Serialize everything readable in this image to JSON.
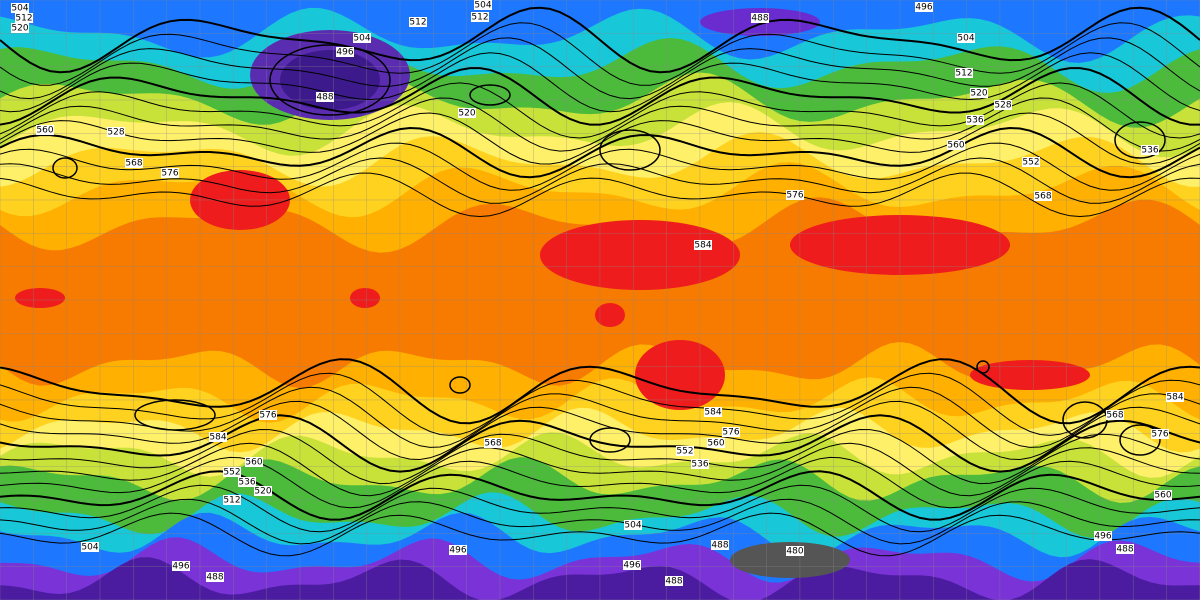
{
  "contour_labels": [
    "504",
    "512",
    "520",
    "512",
    "504",
    "512",
    "488",
    "496",
    "504",
    "512",
    "520",
    "528",
    "536",
    "536",
    "560",
    "552",
    "568",
    "528",
    "560",
    "568",
    "576",
    "496",
    "504",
    "488",
    "520",
    "584",
    "576",
    "576",
    "584",
    "568",
    "584",
    "576",
    "560",
    "552",
    "536",
    "560",
    "552",
    "536",
    "520",
    "512",
    "504",
    "496",
    "488",
    "496",
    "504",
    "496",
    "488",
    "488",
    "480",
    "496",
    "488",
    "568",
    "576",
    "584",
    "560"
  ]
}
